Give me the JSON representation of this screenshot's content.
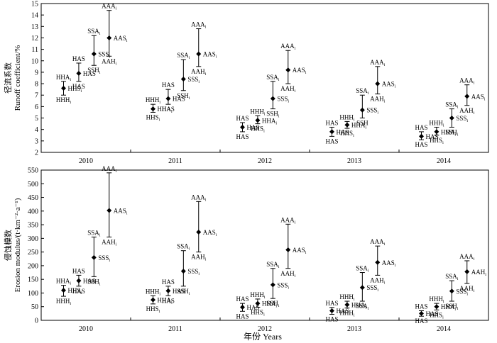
{
  "x_axis_title": "年份 Years",
  "chart_data": [
    {
      "type": "scatter",
      "ylabel_cn": "径流系数",
      "ylabel_en": "Runoff coefficient/%",
      "ylim": [
        2,
        15
      ],
      "yticks": [
        2,
        3,
        4,
        5,
        6,
        7,
        8,
        9,
        10,
        11,
        12,
        13,
        14,
        15
      ],
      "categories": [
        "2010",
        "2011",
        "2012",
        "2013",
        "2014"
      ],
      "series": [
        {
          "year": "2010",
          "points": [
            {
              "lo": 7.0,
              "mid": 7.6,
              "hi": 8.2,
              "top": "HHAi",
              "mid_label": "HHSi",
              "bottom": "HHHi"
            },
            {
              "lo": 8.2,
              "mid": 8.9,
              "hi": 9.8,
              "top": "HAS",
              "mid_label": "HAS",
              "bottom": "HAS"
            },
            {
              "lo": 9.6,
              "mid": 10.6,
              "hi": 12.2,
              "top": "SSAi",
              "mid_label": "SSSi",
              "bottom": "SSHi"
            },
            {
              "lo": 10.4,
              "mid": 12.0,
              "hi": 14.4,
              "top": "AAAi",
              "mid_label": "AASi",
              "bottom": "AAHi"
            }
          ]
        },
        {
          "year": "2011",
          "points": [
            {
              "lo": 5.5,
              "mid": 5.8,
              "hi": 6.2,
              "top": "HHHi",
              "mid_label": "HHAi",
              "bottom": "HHSi"
            },
            {
              "lo": 6.2,
              "mid": 6.7,
              "hi": 7.5,
              "top": "HAS",
              "mid_label": "HAS",
              "bottom": "HAS"
            },
            {
              "lo": 7.4,
              "mid": 8.4,
              "hi": 10.1,
              "top": "SSAi",
              "mid_label": "SSSi",
              "bottom": "SSHi"
            },
            {
              "lo": 9.5,
              "mid": 10.6,
              "hi": 12.8,
              "top": "AAAi",
              "mid_label": "AASi",
              "bottom": "AAHi"
            }
          ]
        },
        {
          "year": "2012",
          "points": [
            {
              "lo": 3.8,
              "mid": 4.2,
              "hi": 4.6,
              "top": "HAS",
              "mid_label": "HAS",
              "bottom": "HAS"
            },
            {
              "lo": 4.5,
              "mid": 4.8,
              "hi": 5.2,
              "top": "HHHi",
              "mid_label": "HHAi",
              "bottom": "HHSi"
            },
            {
              "lo": 5.8,
              "mid": 6.7,
              "hi": 8.2,
              "top": "SSAi",
              "mid_label": "SSSi",
              "bottom": "SSHi"
            },
            {
              "lo": 8.0,
              "mid": 9.2,
              "hi": 10.9,
              "top": "AAAi",
              "mid_label": "AASi",
              "bottom": "AAHi"
            }
          ]
        },
        {
          "year": "2013",
          "points": [
            {
              "lo": 3.4,
              "mid": 3.8,
              "hi": 4.2,
              "top": "HAS",
              "mid_label": "HAS",
              "bottom": "HAS"
            },
            {
              "lo": 4.1,
              "mid": 4.4,
              "hi": 4.7,
              "top": "HHHi",
              "mid_label": "HHAi",
              "bottom": "HHSi"
            },
            {
              "lo": 5.0,
              "mid": 5.7,
              "hi": 7.0,
              "top": "SSAi",
              "mid_label": "SSSi",
              "bottom": "SSH"
            },
            {
              "lo": 7.1,
              "mid": 8.0,
              "hi": 9.5,
              "top": "AAAi",
              "mid_label": "AASi",
              "bottom": "AAHi"
            }
          ]
        },
        {
          "year": "2014",
          "points": [
            {
              "lo": 3.1,
              "mid": 3.4,
              "hi": 3.8,
              "top": "HAS",
              "mid_label": "HAS",
              "bottom": "HAS"
            },
            {
              "lo": 3.5,
              "mid": 3.8,
              "hi": 4.2,
              "top": "HHHi",
              "mid_label": "HHAi",
              "bottom": "HHSi"
            },
            {
              "lo": 4.2,
              "mid": 5.0,
              "hi": 5.8,
              "top": "SSAi",
              "mid_label": "SSSi",
              "bottom": "SSHi"
            },
            {
              "lo": 6.1,
              "mid": 6.9,
              "hi": 7.9,
              "top": "AAAi",
              "mid_label": "AASi",
              "bottom": "AAHi"
            }
          ]
        }
      ]
    },
    {
      "type": "scatter",
      "ylabel_cn": "侵蚀模数",
      "ylabel_en": "Erosion modulus/(t·km⁻²·a⁻¹)",
      "ylim": [
        0,
        550
      ],
      "yticks": [
        0,
        50,
        100,
        150,
        200,
        250,
        300,
        350,
        400,
        450,
        500,
        550
      ],
      "categories": [
        "2010",
        "2011",
        "2012",
        "2013",
        "2014"
      ],
      "series": [
        {
          "year": "2010",
          "points": [
            {
              "lo": 88,
              "mid": 110,
              "hi": 128,
              "top": "HHAi",
              "mid_label": "HHSi",
              "bottom": "HHHi"
            },
            {
              "lo": 125,
              "mid": 145,
              "hi": 165,
              "top": "HAS",
              "mid_label": "HAS",
              "bottom": "HAS"
            },
            {
              "lo": 160,
              "mid": 230,
              "hi": 305,
              "top": "SSAi",
              "mid_label": "SSSi",
              "bottom": "SSHi"
            },
            {
              "lo": 305,
              "mid": 402,
              "hi": 540,
              "top": "AAAi",
              "mid_label": "AASi",
              "bottom": "AAHi"
            }
          ]
        },
        {
          "year": "2011",
          "points": [
            {
              "lo": 60,
              "mid": 75,
              "hi": 90,
              "top": "HHHi",
              "mid_label": "HHAi",
              "bottom": "HHSi"
            },
            {
              "lo": 90,
              "mid": 108,
              "hi": 125,
              "top": "HAS",
              "mid_label": "HAS",
              "bottom": "HAS"
            },
            {
              "lo": 125,
              "mid": 180,
              "hi": 255,
              "top": "SSAi",
              "mid_label": "SSSi",
              "bottom": "SSHi"
            },
            {
              "lo": 250,
              "mid": 323,
              "hi": 435,
              "top": "AAAi",
              "mid_label": "AASi",
              "bottom": "AAHi"
            }
          ]
        },
        {
          "year": "2012",
          "points": [
            {
              "lo": 33,
              "mid": 48,
              "hi": 62,
              "top": "HAS",
              "mid_label": "HAS",
              "bottom": "HAS"
            },
            {
              "lo": 48,
              "mid": 62,
              "hi": 78,
              "top": "HHHi",
              "mid_label": "HHAi",
              "bottom": "HHSi"
            },
            {
              "lo": 80,
              "mid": 130,
              "hi": 190,
              "top": "SSAi",
              "mid_label": "SSSi",
              "bottom": "SSHi"
            },
            {
              "lo": 190,
              "mid": 258,
              "hi": 352,
              "top": "AAAi",
              "mid_label": "AASi",
              "bottom": "AAHi"
            }
          ]
        },
        {
          "year": "2013",
          "points": [
            {
              "lo": 22,
              "mid": 35,
              "hi": 47,
              "top": "HAS",
              "mid_label": "HAS",
              "bottom": "HAS"
            },
            {
              "lo": 45,
              "mid": 57,
              "hi": 70,
              "top": "HHHi",
              "mid_label": "HHAi",
              "bottom": "HHHi"
            },
            {
              "lo": 70,
              "mid": 120,
              "hi": 175,
              "top": "SSAi",
              "mid_label": "SSSi",
              "bottom": "SSAi"
            },
            {
              "lo": 165,
              "mid": 212,
              "hi": 272,
              "top": "AAAi",
              "mid_label": "AASi",
              "bottom": "AAHi"
            }
          ]
        },
        {
          "year": "2014",
          "points": [
            {
              "lo": 15,
              "mid": 25,
              "hi": 35,
              "top": "HAS",
              "mid_label": "HAS",
              "bottom": "HAS"
            },
            {
              "lo": 38,
              "mid": 50,
              "hi": 62,
              "top": "HHHi",
              "mid_label": "HHAi",
              "bottom": "HHSi"
            },
            {
              "lo": 70,
              "mid": 107,
              "hi": 145,
              "top": "SSAi",
              "mid_label": "SSSi",
              "bottom": "SSHi"
            },
            {
              "lo": 135,
              "mid": 178,
              "hi": 218,
              "top": "AAAi",
              "mid_label": "AAHi",
              "bottom": "AAHi"
            }
          ]
        }
      ]
    }
  ]
}
